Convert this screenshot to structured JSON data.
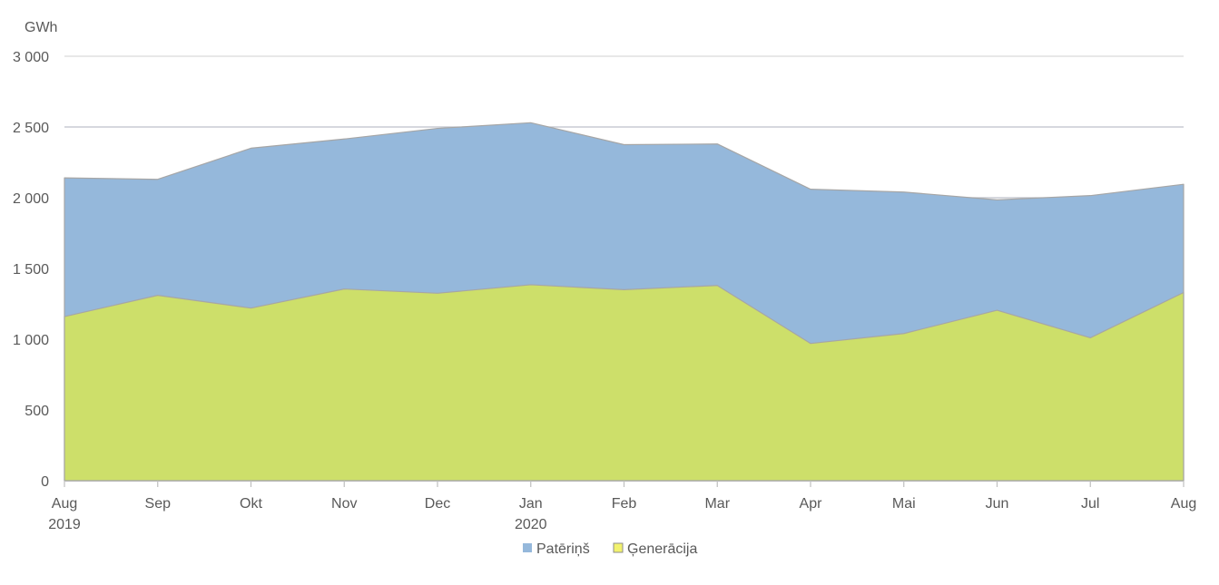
{
  "chart_data": {
    "type": "area",
    "unit_label": "GWh",
    "x": [
      "Aug",
      "Sep",
      "Okt",
      "Nov",
      "Dec",
      "Jan",
      "Feb",
      "Mar",
      "Apr",
      "Mai",
      "Jun",
      "Jul",
      "Aug"
    ],
    "year_labels": [
      "2019",
      "",
      "",
      "",
      "",
      "2020",
      "",
      "",
      "",
      "",
      "",
      "",
      ""
    ],
    "ylim": [
      0,
      3000
    ],
    "yticks": [
      0,
      500,
      1000,
      1500,
      2000,
      2500,
      3000
    ],
    "ytick_labels": [
      "0",
      "500",
      "1 000",
      "1 500",
      "2 000",
      "2 500",
      "3 000"
    ],
    "grid": true,
    "legend_position": "bottom",
    "series": [
      {
        "name": "Patēriņš",
        "color": "#95b8db",
        "values": [
          2140,
          2130,
          2350,
          2415,
          2490,
          2530,
          2375,
          2380,
          2060,
          2040,
          1985,
          2015,
          2095
        ]
      },
      {
        "name": "Ģenerācija",
        "color": "#cddf6a",
        "values": [
          1160,
          1310,
          1220,
          1355,
          1325,
          1385,
          1350,
          1380,
          970,
          1040,
          1205,
          1010,
          1330
        ]
      }
    ]
  }
}
